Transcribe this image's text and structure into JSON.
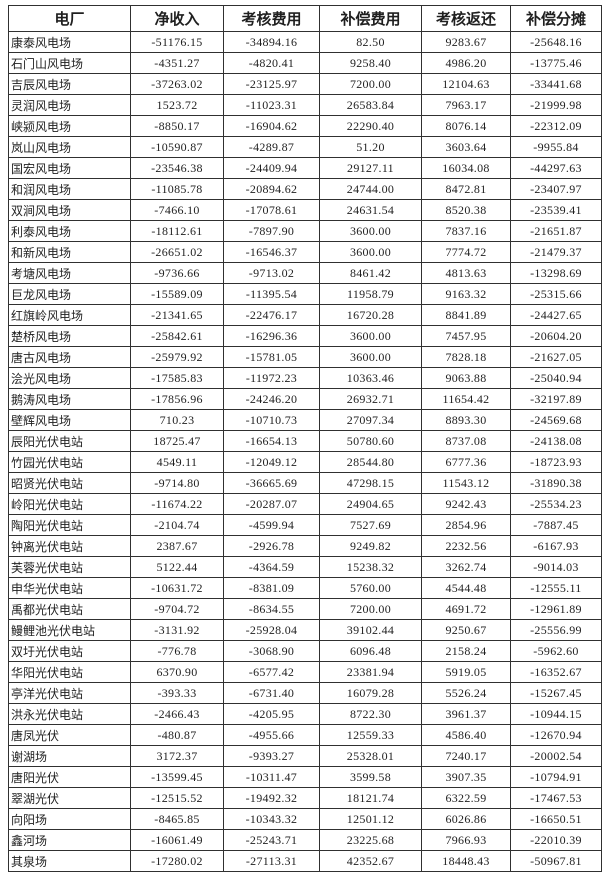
{
  "table": {
    "columns": [
      "电厂",
      "净收入",
      "考核费用",
      "补偿费用",
      "考核返还",
      "补偿分摊"
    ],
    "rows": [
      [
        "康泰风电场",
        "-51176.15",
        "-34894.16",
        "82.50",
        "9283.67",
        "-25648.16"
      ],
      [
        "石门山风电场",
        "-4351.27",
        "-4820.41",
        "9258.40",
        "4986.20",
        "-13775.46"
      ],
      [
        "吉辰风电场",
        "-37263.02",
        "-23125.97",
        "7200.00",
        "12104.63",
        "-33441.68"
      ],
      [
        "灵润风电场",
        "1523.72",
        "-11023.31",
        "26583.84",
        "7963.17",
        "-21999.98"
      ],
      [
        "峡颍风电场",
        "-8850.17",
        "-16904.62",
        "22290.40",
        "8076.14",
        "-22312.09"
      ],
      [
        "岚山风电场",
        "-10590.87",
        "-4289.87",
        "51.20",
        "3603.64",
        "-9955.84"
      ],
      [
        "国宏风电场",
        "-23546.38",
        "-24409.94",
        "29127.11",
        "16034.08",
        "-44297.63"
      ],
      [
        "和润风电场",
        "-11085.78",
        "-20894.62",
        "24744.00",
        "8472.81",
        "-23407.97"
      ],
      [
        "双涧风电场",
        "-7466.10",
        "-17078.61",
        "24631.54",
        "8520.38",
        "-23539.41"
      ],
      [
        "利泰风电场",
        "-18112.61",
        "-7897.90",
        "3600.00",
        "7837.16",
        "-21651.87"
      ],
      [
        "和新风电场",
        "-26651.02",
        "-16546.37",
        "3600.00",
        "7774.72",
        "-21479.37"
      ],
      [
        "考塘风电场",
        "-9736.66",
        "-9713.02",
        "8461.42",
        "4813.63",
        "-13298.69"
      ],
      [
        "巨龙风电场",
        "-15589.09",
        "-11395.54",
        "11958.79",
        "9163.32",
        "-25315.66"
      ],
      [
        "红旗岭风电场",
        "-21341.65",
        "-22476.17",
        "16720.28",
        "8841.89",
        "-24427.65"
      ],
      [
        "楚桥风电场",
        "-25842.61",
        "-16296.36",
        "3600.00",
        "7457.95",
        "-20604.20"
      ],
      [
        "唐古风电场",
        "-25979.92",
        "-15781.05",
        "3600.00",
        "7828.18",
        "-21627.05"
      ],
      [
        "浍光风电场",
        "-17585.83",
        "-11972.23",
        "10363.46",
        "9063.88",
        "-25040.94"
      ],
      [
        "鹅涛风电场",
        "-17856.96",
        "-24246.20",
        "26932.71",
        "11654.42",
        "-32197.89"
      ],
      [
        "壁辉风电场",
        "710.23",
        "-10710.73",
        "27097.34",
        "8893.30",
        "-24569.68"
      ],
      [
        "辰阳光伏电站",
        "18725.47",
        "-16654.13",
        "50780.60",
        "8737.08",
        "-24138.08"
      ],
      [
        "竹园光伏电站",
        "4549.11",
        "-12049.12",
        "28544.80",
        "6777.36",
        "-18723.93"
      ],
      [
        "昭贤光伏电站",
        "-9714.80",
        "-36665.69",
        "47298.15",
        "11543.12",
        "-31890.38"
      ],
      [
        "岭阳光伏电站",
        "-11674.22",
        "-20287.07",
        "24904.65",
        "9242.43",
        "-25534.23"
      ],
      [
        "陶阳光伏电站",
        "-2104.74",
        "-4599.94",
        "7527.69",
        "2854.96",
        "-7887.45"
      ],
      [
        "钟离光伏电站",
        "2387.67",
        "-2926.78",
        "9249.82",
        "2232.56",
        "-6167.93"
      ],
      [
        "芙蓉光伏电站",
        "5122.44",
        "-4364.59",
        "15238.32",
        "3262.74",
        "-9014.03"
      ],
      [
        "申华光伏电站",
        "-10631.72",
        "-8381.09",
        "5760.00",
        "4544.48",
        "-12555.11"
      ],
      [
        "禹都光伏电站",
        "-9704.72",
        "-8634.55",
        "7200.00",
        "4691.72",
        "-12961.89"
      ],
      [
        "鳗鲤池光伏电站",
        "-3131.92",
        "-25928.04",
        "39102.44",
        "9250.67",
        "-25556.99"
      ],
      [
        "双圩光伏电站",
        "-776.78",
        "-3068.90",
        "6096.48",
        "2158.24",
        "-5962.60"
      ],
      [
        "华阳光伏电站",
        "6370.90",
        "-6577.42",
        "23381.94",
        "5919.05",
        "-16352.67"
      ],
      [
        "亭洋光伏电站",
        "-393.33",
        "-6731.40",
        "16079.28",
        "5526.24",
        "-15267.45"
      ],
      [
        "洪永光伏电站",
        "-2466.43",
        "-4205.95",
        "8722.30",
        "3961.37",
        "-10944.15"
      ],
      [
        "唐凤光伏",
        "-480.87",
        "-4955.66",
        "12559.33",
        "4586.40",
        "-12670.94"
      ],
      [
        "谢湖场",
        "3172.37",
        "-9393.27",
        "25328.01",
        "7240.17",
        "-20002.54"
      ],
      [
        "唐阳光伏",
        "-13599.45",
        "-10311.47",
        "3599.58",
        "3907.35",
        "-10794.91"
      ],
      [
        "翠湖光伏",
        "-12515.52",
        "-19492.32",
        "18121.74",
        "6322.59",
        "-17467.53"
      ],
      [
        "向阳场",
        "-8465.85",
        "-10343.32",
        "12501.12",
        "6026.86",
        "-16650.51"
      ],
      [
        "鑫河场",
        "-16061.49",
        "-25243.71",
        "23225.68",
        "7966.93",
        "-22010.39"
      ],
      [
        "其泉场",
        "-17280.02",
        "-27113.31",
        "42352.67",
        "18448.43",
        "-50967.81"
      ]
    ]
  }
}
